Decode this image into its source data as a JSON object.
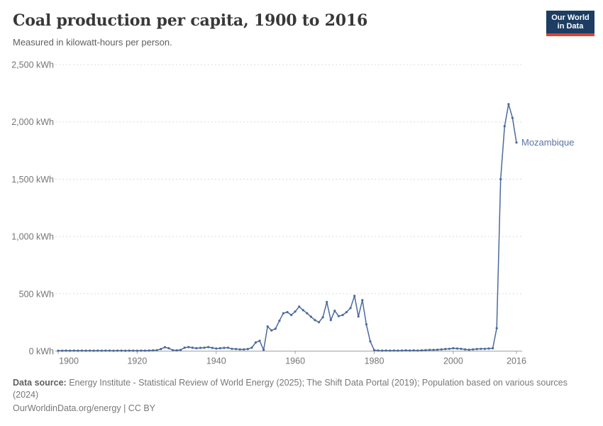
{
  "header": {
    "title": "Coal production per capita, 1900 to 2016",
    "subtitle": "Measured in kilowatt-hours per person.",
    "logo_line1": "Our World",
    "logo_line2": "in Data"
  },
  "chart_data": {
    "type": "line",
    "title": "Coal production per capita, 1900 to 2016",
    "xlabel": "",
    "ylabel": "kilowatt-hours per person",
    "xlim": [
      1900,
      2016
    ],
    "ylim": [
      0,
      2500
    ],
    "grid": "horizontal dashed",
    "legend_position": "end-of-line label",
    "x_ticks": [
      1900,
      1920,
      1940,
      1960,
      1980,
      2000,
      2016
    ],
    "x_tick_labels": [
      "1900",
      "1920",
      "1940",
      "1960",
      "1980",
      "2000",
      "2016"
    ],
    "y_ticks": [
      0,
      500,
      1000,
      1500,
      2000,
      2500
    ],
    "y_tick_labels": [
      "0 kWh",
      "500 kWh",
      "1,000 kWh",
      "1,500 kWh",
      "2,000 kWh",
      "2,500 kWh"
    ],
    "series": [
      {
        "name": "Mozambique",
        "x": [
          1900,
          1901,
          1902,
          1903,
          1904,
          1905,
          1906,
          1907,
          1908,
          1909,
          1910,
          1911,
          1912,
          1913,
          1914,
          1915,
          1916,
          1917,
          1918,
          1919,
          1920,
          1921,
          1922,
          1923,
          1924,
          1925,
          1926,
          1927,
          1928,
          1929,
          1930,
          1931,
          1932,
          1933,
          1934,
          1935,
          1936,
          1937,
          1938,
          1939,
          1940,
          1941,
          1942,
          1943,
          1944,
          1945,
          1946,
          1947,
          1948,
          1949,
          1950,
          1951,
          1952,
          1953,
          1954,
          1955,
          1956,
          1957,
          1958,
          1959,
          1960,
          1961,
          1962,
          1963,
          1964,
          1965,
          1966,
          1967,
          1968,
          1969,
          1970,
          1971,
          1972,
          1973,
          1974,
          1975,
          1976,
          1977,
          1978,
          1979,
          1980,
          1981,
          1982,
          1983,
          1984,
          1985,
          1986,
          1987,
          1988,
          1989,
          1990,
          1991,
          1992,
          1993,
          1994,
          1995,
          1996,
          1997,
          1998,
          1999,
          2000,
          2001,
          2002,
          2003,
          2004,
          2005,
          2006,
          2007,
          2008,
          2009,
          2010,
          2011,
          2012,
          2013,
          2014,
          2015,
          2016
        ],
        "values": [
          3,
          3,
          4,
          3,
          4,
          3,
          4,
          3,
          4,
          3,
          4,
          3,
          4,
          4,
          3,
          4,
          4,
          3,
          4,
          4,
          3,
          4,
          4,
          5,
          6,
          8,
          18,
          34,
          25,
          8,
          6,
          10,
          30,
          35,
          30,
          25,
          28,
          30,
          35,
          28,
          22,
          25,
          28,
          30,
          20,
          18,
          15,
          15,
          18,
          30,
          75,
          90,
          10,
          215,
          180,
          195,
          265,
          330,
          340,
          315,
          345,
          388,
          357,
          330,
          300,
          270,
          252,
          295,
          428,
          271,
          352,
          305,
          315,
          340,
          376,
          482,
          302,
          445,
          233,
          85,
          8,
          5,
          4,
          5,
          4,
          5,
          4,
          5,
          6,
          5,
          6,
          5,
          6,
          8,
          10,
          10,
          12,
          15,
          18,
          20,
          25,
          22,
          20,
          15,
          12,
          15,
          18,
          20,
          20,
          22,
          25,
          200,
          1500,
          1963,
          2155,
          2035,
          1820
        ]
      }
    ]
  },
  "footer": {
    "source_label": "Data source:",
    "source_text": " Energy Institute - Statistical Review of World Energy (2025); The Shift Data Portal (2019); Population based on various sources (2024)",
    "url_line": "OurWorldinData.org/energy | CC BY"
  },
  "colors": {
    "line": "#4C6A9C",
    "entity_label": "#5b73a8",
    "grid": "#dcdcdc",
    "axis": "#a1a1a1",
    "tick_text": "#757575",
    "logo_bg": "#1d3d63",
    "logo_red": "#e0432f"
  }
}
